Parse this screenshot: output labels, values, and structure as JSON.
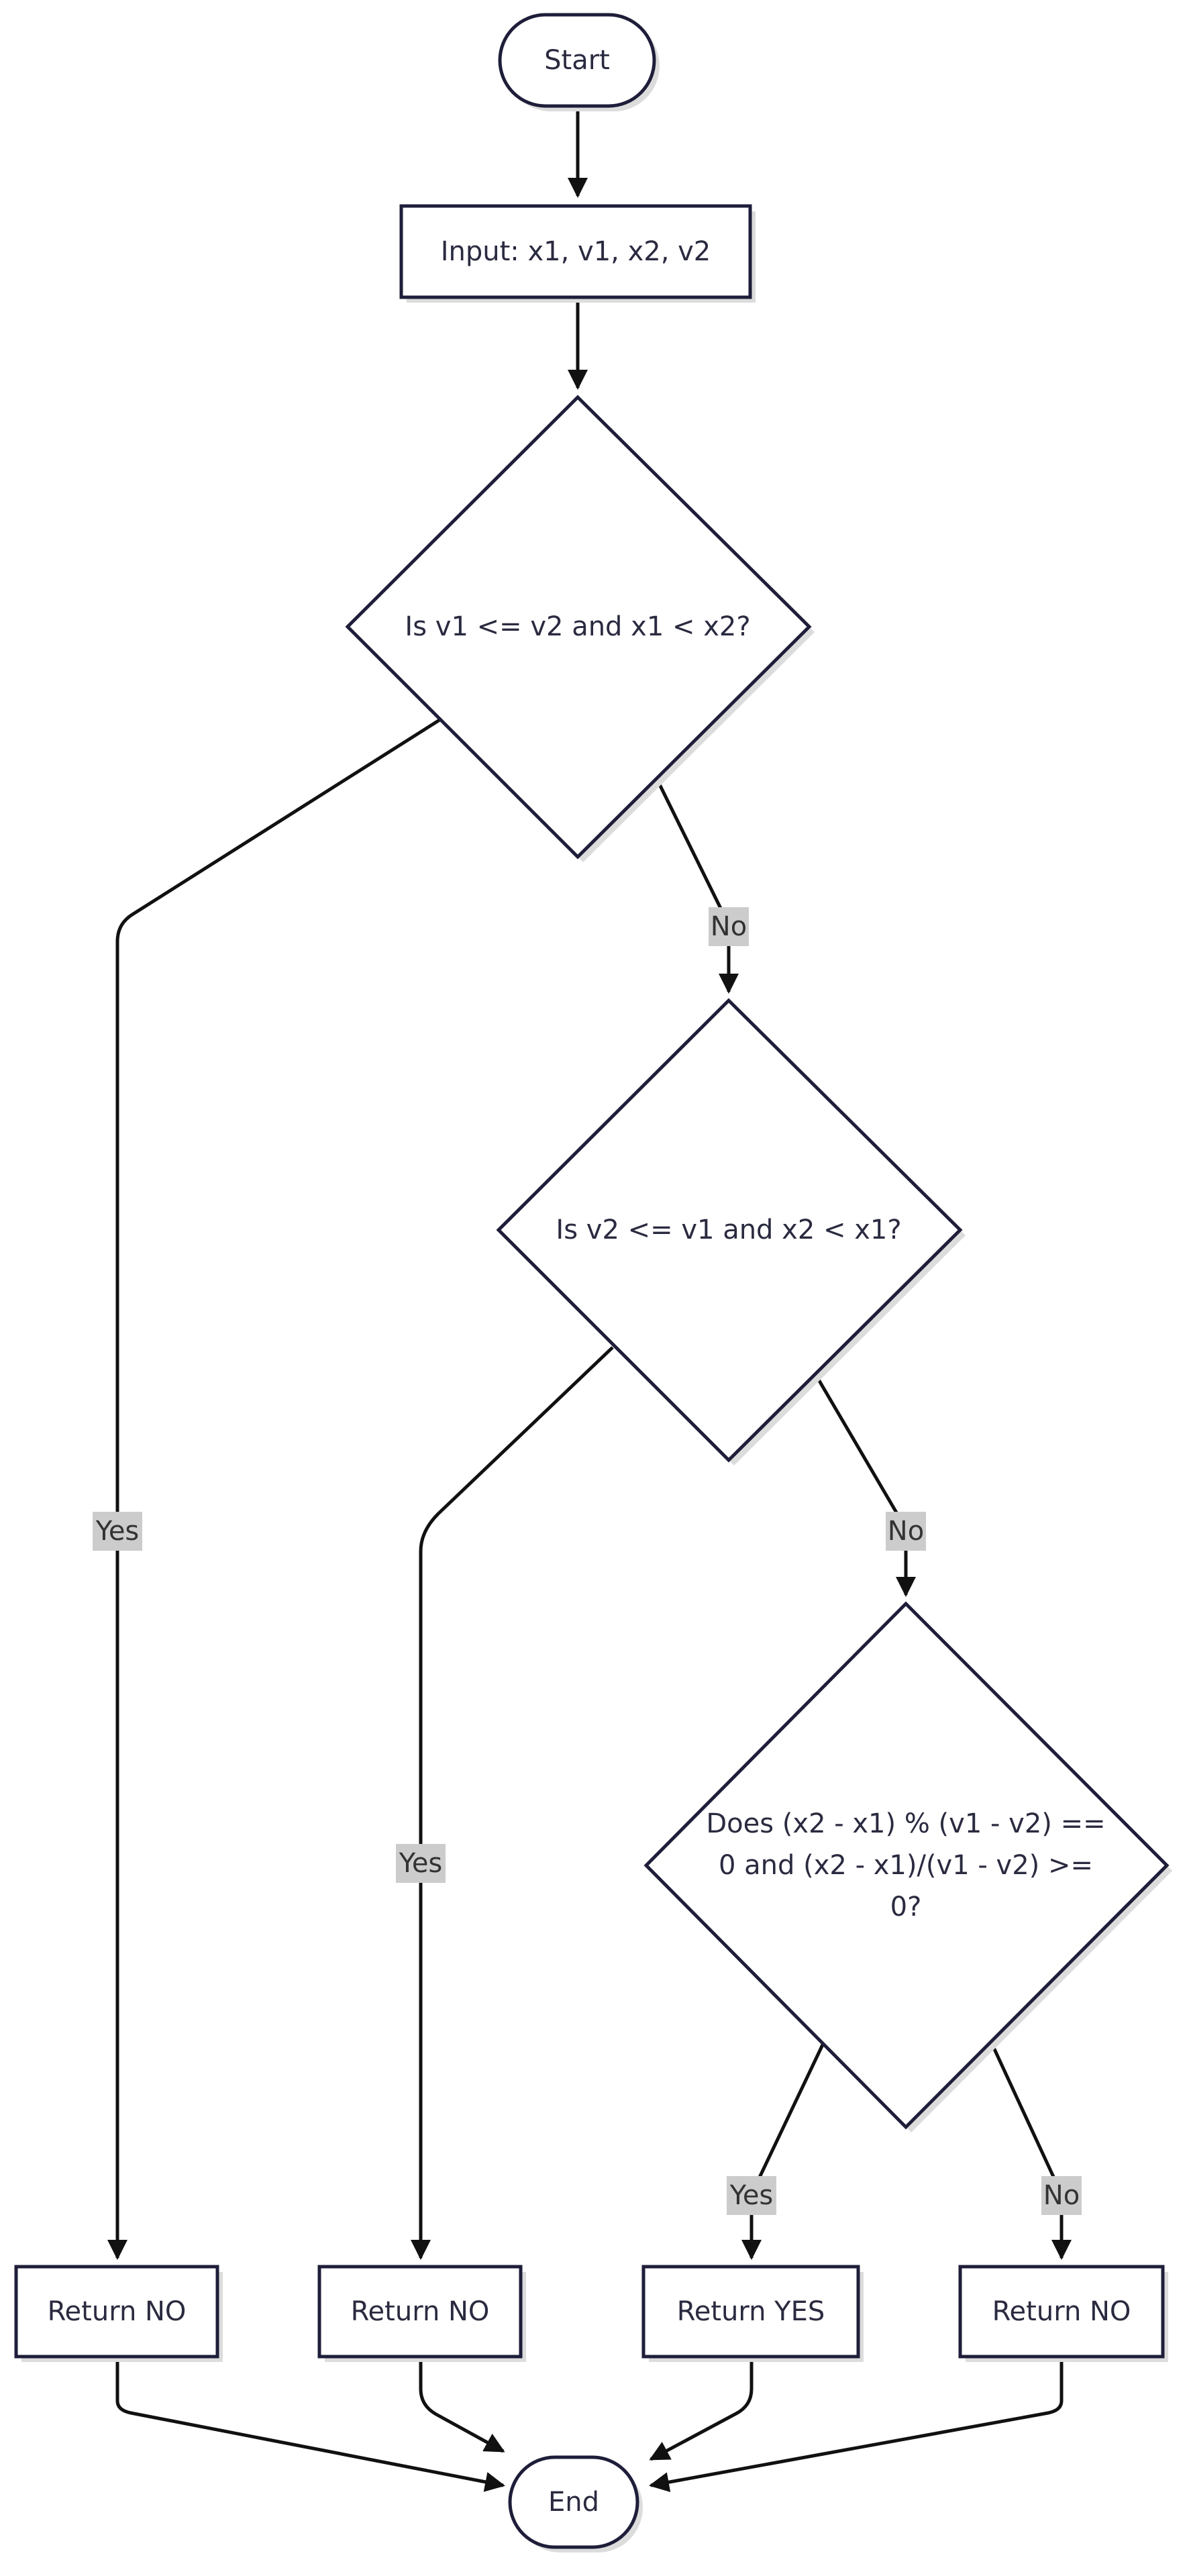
{
  "nodes": {
    "start": "Start",
    "input": "Input: x1, v1, x2, v2",
    "decision1": "Is v1 <= v2 and x1 < x2?",
    "decision2": "Is v2 <= v1 and x2 < x1?",
    "decision3": [
      "Does (x2 - x1) % (v1 - v2) ==",
      "0 and (x2 - x1)/(v1 - v2) >=",
      "0?"
    ],
    "return_no_1": "Return NO",
    "return_no_2": "Return NO",
    "return_yes": "Return YES",
    "return_no_3": "Return NO",
    "end": "End"
  },
  "edge_labels": {
    "d1_yes": "Yes",
    "d1_no": "No",
    "d2_yes": "Yes",
    "d2_no": "No",
    "d3_yes": "Yes",
    "d3_no": "No"
  },
  "colors": {
    "node_fill": "#ffffff",
    "node_stroke": "#1e1e3a",
    "edge": "#111111",
    "label_background": "#cccccc"
  }
}
